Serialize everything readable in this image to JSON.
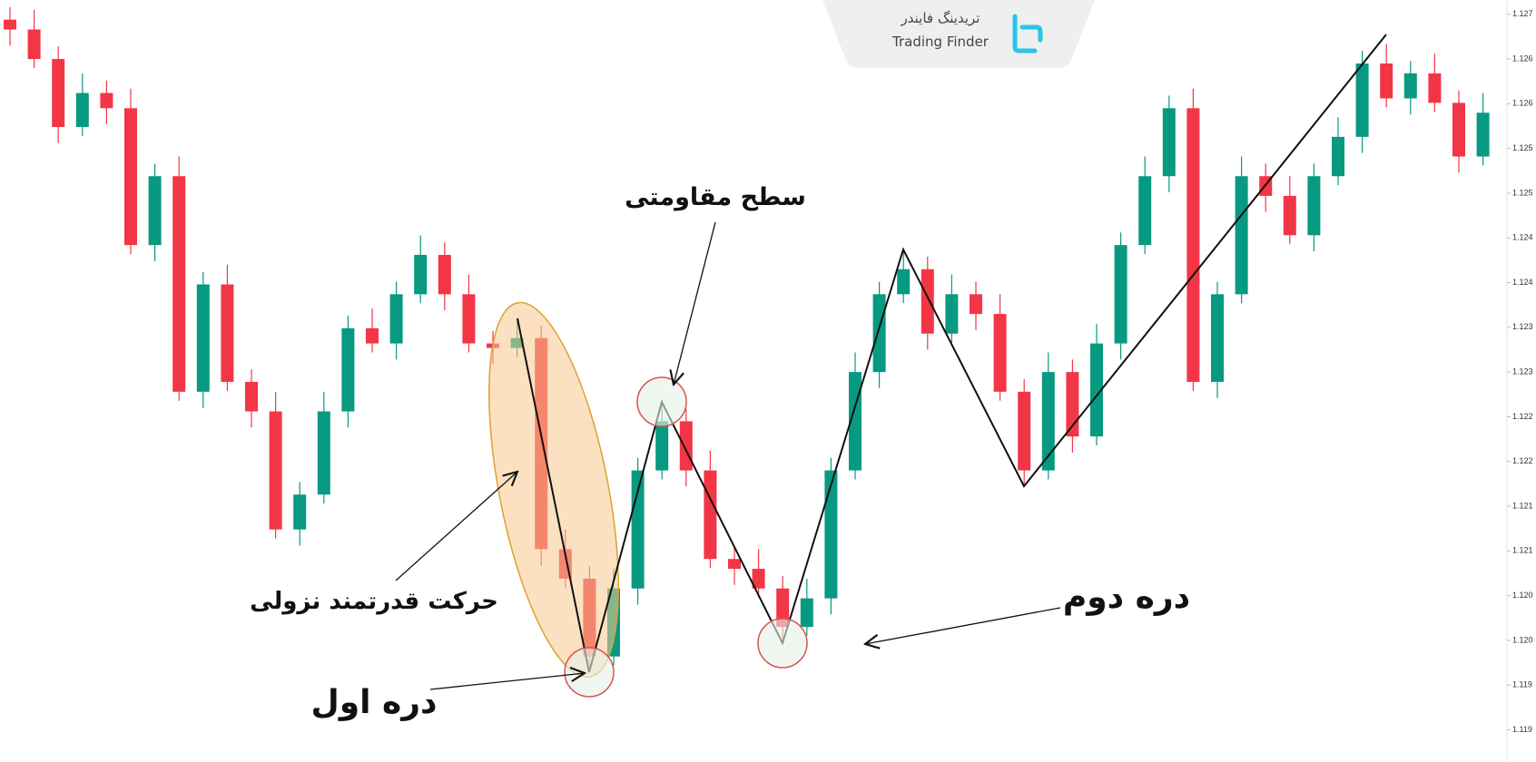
{
  "chart_data": {
    "type": "candlestick",
    "open": [
      1.12694,
      1.12683,
      1.1265,
      1.12574,
      1.12612,
      1.12595,
      1.12442,
      1.12519,
      1.12278,
      1.12398,
      1.12289,
      1.12256,
      1.12124,
      1.12163,
      1.12256,
      1.12349,
      1.12332,
      1.12387,
      1.12431,
      1.12387,
      1.12332,
      1.12327,
      1.12338,
      1.12102,
      1.12069,
      1.11982,
      1.12058,
      1.1219,
      1.12245,
      1.1219,
      1.12091,
      1.1208,
      1.12058,
      1.12015,
      1.12047,
      1.1219,
      1.123,
      1.12387,
      1.12415,
      1.12343,
      1.12387,
      1.12365,
      1.12278,
      1.1219,
      1.123,
      1.12228,
      1.12332,
      1.12442,
      1.12519,
      1.12595,
      1.12289,
      1.12387,
      1.12519,
      1.12497,
      1.12453,
      1.12519,
      1.12563,
      1.12645,
      1.12606,
      1.12634,
      1.12601,
      1.12541
    ],
    "high": [
      1.12708,
      1.12705,
      1.12664,
      1.12634,
      1.12626,
      1.12617,
      1.12533,
      1.12541,
      1.12412,
      1.1242,
      1.12303,
      1.12278,
      1.12177,
      1.12278,
      1.12363,
      1.12371,
      1.12401,
      1.12453,
      1.12445,
      1.12409,
      1.12346,
      1.1236,
      1.12352,
      1.12124,
      1.12083,
      1.1208,
      1.12204,
      1.12267,
      1.12259,
      1.12212,
      1.12105,
      1.12102,
      1.12072,
      1.12069,
      1.12204,
      1.12322,
      1.12401,
      1.12437,
      1.12429,
      1.12409,
      1.12401,
      1.12387,
      1.12292,
      1.12322,
      1.12314,
      1.12354,
      1.12456,
      1.12541,
      1.12609,
      1.12617,
      1.12401,
      1.12541,
      1.12533,
      1.12519,
      1.12533,
      1.12585,
      1.12659,
      1.12667,
      1.12648,
      1.12656,
      1.12615,
      1.12612
    ],
    "low": [
      1.12665,
      1.1264,
      1.12556,
      1.12564,
      1.12577,
      1.12432,
      1.12424,
      1.12268,
      1.1226,
      1.12279,
      1.12238,
      1.12114,
      1.12106,
      1.12153,
      1.12238,
      1.12322,
      1.12314,
      1.12377,
      1.12369,
      1.12322,
      1.12309,
      1.12317,
      1.12084,
      1.12059,
      1.11964,
      1.11972,
      1.1204,
      1.1218,
      1.12172,
      1.12081,
      1.12062,
      1.12048,
      1.11997,
      1.12005,
      1.12029,
      1.1218,
      1.12282,
      1.12377,
      1.12325,
      1.12333,
      1.12347,
      1.12268,
      1.12172,
      1.1218,
      1.1221,
      1.12218,
      1.12314,
      1.12432,
      1.12501,
      1.12279,
      1.12271,
      1.12377,
      1.12479,
      1.12443,
      1.12435,
      1.12509,
      1.12545,
      1.12596,
      1.12588,
      1.12591,
      1.12523,
      1.12531
    ],
    "close": [
      1.12683,
      1.1265,
      1.12574,
      1.12612,
      1.12595,
      1.12442,
      1.12519,
      1.12278,
      1.12398,
      1.12289,
      1.12256,
      1.12124,
      1.12163,
      1.12256,
      1.12349,
      1.12332,
      1.12387,
      1.12431,
      1.12387,
      1.12332,
      1.12327,
      1.12338,
      1.12102,
      1.12069,
      1.11982,
      1.12058,
      1.1219,
      1.12245,
      1.1219,
      1.12091,
      1.1208,
      1.12058,
      1.12015,
      1.12047,
      1.1219,
      1.123,
      1.12387,
      1.12415,
      1.12343,
      1.12387,
      1.12365,
      1.12278,
      1.1219,
      1.123,
      1.12228,
      1.12332,
      1.12442,
      1.12519,
      1.12595,
      1.12289,
      1.12387,
      1.12519,
      1.12497,
      1.12453,
      1.12519,
      1.12563,
      1.12645,
      1.12606,
      1.12634,
      1.12601,
      1.12541,
      1.1259
    ],
    "up_color": "#089981",
    "down_color": "#f23645",
    "ylim": [
      1.11864,
      1.12716
    ],
    "yticks": [
      1.127,
      {
        "value": 1.1265,
        "label": "1.126"
      },
      1.126,
      {
        "value": 1.1255,
        "label": "1.125"
      },
      1.125,
      {
        "value": 1.1245,
        "label": "1.124"
      },
      1.124,
      {
        "value": 1.1235,
        "label": "1.123"
      },
      1.123,
      {
        "value": 1.1225,
        "label": "1.122"
      },
      1.122,
      {
        "value": 1.1215,
        "label": "1.121"
      },
      1.121,
      {
        "value": 1.1205,
        "label": "1.120"
      },
      {
        "value": 1.12,
        "label": "1.120"
      },
      {
        "value": 1.1195,
        "label": "1.119"
      },
      1.119
    ],
    "grid": false,
    "annotations": [
      "سطح مقاومتی",
      "حرکت قدرتمند نزولی",
      "دره اول",
      "دره دوم"
    ],
    "watermark": {
      "name_fa": "تریدینگ فایندر",
      "name_en": "Trading Finder"
    }
  }
}
